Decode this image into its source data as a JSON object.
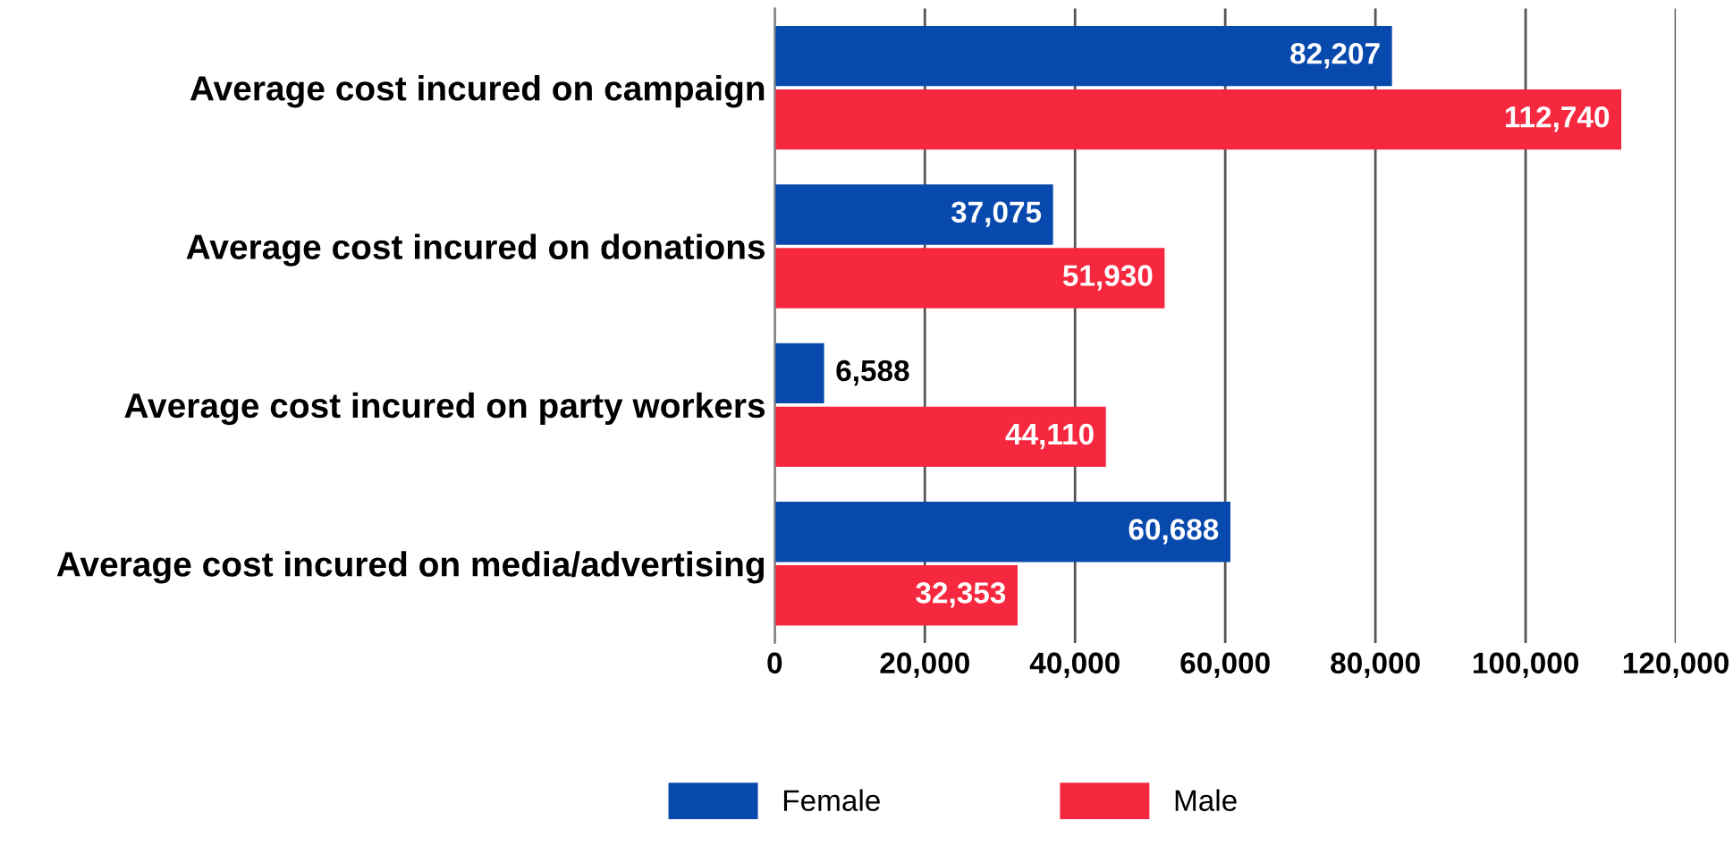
{
  "chart_data": {
    "type": "bar",
    "orientation": "horizontal",
    "categories": [
      "Average cost incured on campaign",
      "Average cost incured on donations",
      "Average cost incured on party workers",
      "Average cost incured on media/advertising"
    ],
    "series": [
      {
        "name": "Female",
        "color": "#0849ad",
        "values": [
          82207,
          37075,
          6588,
          60688
        ],
        "value_labels": [
          "82,207",
          "37,075",
          "6,588",
          "60,688"
        ]
      },
      {
        "name": "Male",
        "color": "#f5283f",
        "values": [
          112740,
          51930,
          44110,
          32353
        ],
        "value_labels": [
          "112,740",
          "51,930",
          "44,110",
          "32,353"
        ]
      }
    ],
    "xlim": [
      0,
      120000
    ],
    "xticks": [
      0,
      {
        "value": 20000,
        "label": "20,000"
      },
      {
        "value": 40000,
        "label": "40,000"
      },
      {
        "value": 60000,
        "label": "60,000"
      },
      {
        "value": 80000,
        "label": "80,000"
      },
      {
        "value": 100000,
        "label": "100,000"
      },
      {
        "value": 120000,
        "label": "120,000"
      }
    ],
    "grid": "x",
    "legend": "bottom"
  }
}
